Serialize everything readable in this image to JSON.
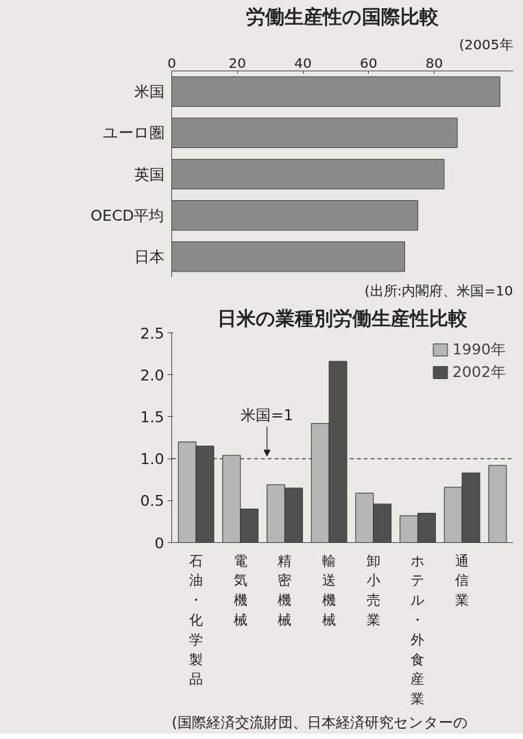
{
  "chart_data": [
    {
      "type": "bar",
      "orientation": "horizontal",
      "title": "労働生産性の国際比較",
      "subtitle": "(2005年",
      "categories": [
        "米国",
        "ユーロ圏",
        "英国",
        "OECD平均",
        "日本"
      ],
      "values": [
        100,
        87,
        83,
        75,
        71
      ],
      "color": "#8a8a8a",
      "xlim": [
        0,
        104
      ],
      "xticks": [
        0,
        20,
        40,
        60,
        80
      ],
      "grid": false,
      "annotations": [
        "(出所:内閣府、米国=10"
      ]
    },
    {
      "type": "bar",
      "title": "日米の業種別労働生産性比較",
      "categories": [
        "石油・化学製品",
        "電気機械",
        "精密機械",
        "輸送機械",
        "卸小売業",
        "ホテル・外食産業",
        "通信業",
        null
      ],
      "series": [
        {
          "name": "1990年",
          "color": "#b5b5b5",
          "values": [
            1.2,
            1.04,
            0.69,
            1.42,
            0.59,
            0.32,
            0.66,
            0.92
          ]
        },
        {
          "name": "2002年",
          "color": "#505050",
          "values": [
            1.15,
            0.4,
            0.65,
            2.16,
            0.46,
            0.35,
            0.83,
            null
          ]
        }
      ],
      "ylim": [
        0,
        2.5
      ],
      "yticks": [
        0,
        {
          "value": 0.5,
          "label": "0.5"
        },
        {
          "value": 1,
          "label": "1.0"
        },
        {
          "value": 1.5,
          "label": "1.5"
        },
        {
          "value": 2,
          "label": "2.0"
        },
        2.5
      ],
      "grid": false,
      "legend": "top right",
      "ref_lines": [
        {
          "axis": "y",
          "value": 1,
          "label": "米国=1",
          "line_style": "dashed",
          "color": "#333333"
        }
      ],
      "annotations": [
        "(国際経済交流財団、日本経済研究センターの"
      ]
    }
  ]
}
